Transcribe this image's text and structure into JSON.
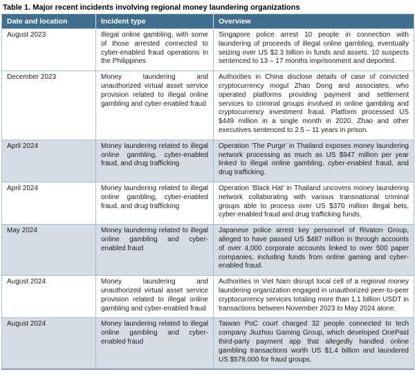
{
  "page": {
    "title": "Table 1. Major recent incidents involving regional money laundering organizations"
  },
  "table": {
    "headers": [
      "Date and location",
      "Incident type",
      "Overview"
    ],
    "rows": [
      {
        "date": "August 2023",
        "incident_type": "Illegal online gambling, with some of those arrested connected to cyber-enabled fraud operations in the Philippines",
        "overview": "Singapore police arrest 10 people in connection with laundering of proceeds of illegal online gambling, eventually seizing over US $2.3 billion in funds and assets. 10 suspects sentenced to 13 – 17 months imprisonment and deported."
      },
      {
        "date": "December 2023",
        "incident_type": "Money laundering and unauthorized virtual asset service provision related to illegal online gambling and cyber-enabled fraud",
        "overview": "Authorities in China disclose details of case of convicted cryptocurrency mogul Zhao Dong and associates, who operated platforms providing payment and settlement services to criminal groups involved in online gambling and cryptocurrency investment fraud. Platform processed US $449 million in a single month in 2020. Zhao and other executives sentenced to 2.5 – 11 years in prison."
      },
      {
        "date": "April 2024",
        "incident_type": "Money laundering related to illegal online gambling, cyber-enabled fraud, and drug trafficking",
        "overview": "Operation ‘The Purge’ in Thailand exposes money laundering network processing as much as US $947 million per year linked to illegal online gambling, cyber-enabled fraud, and drug trafficking."
      },
      {
        "date": "April 2024",
        "incident_type": "Money laundering related to illegal online gambling, cyber-enabled fraud, and drug trafficking",
        "overview": "Operation ‘Black Hat’ in Thailand uncovers money laundering network collaborating with various transnational criminal groups able to process over US $370 million illegal bets, cyber-enabled fraud and drug trafficking funds."
      },
      {
        "date": "May 2024",
        "incident_type": "Money laundering related to illegal online gambling and cyber-enabled fraud",
        "overview": "Japanese police arrest key personnel of Rivaton Group, alleged to have passed US $487 million in through accounts of over 4,000 corporate accounts linked to over 500 paper companies, including funds from online gaming and cyber-enabled fraud."
      },
      {
        "date": "August 2024",
        "incident_type": "Money laundering and unauthorized virtual asset service provision related to illegal online gambling and cyber-enabled fraud",
        "overview": "Authorities in Viet Nam disrupt local cell of a regional money laundering organization engaged in unauthorized peer-to-peer cryptocurrency services totaling more than 1.1 billion USDT in transactions between November 2023 to May 2024 alone."
      },
      {
        "date": "August 2024",
        "incident_type": "Money laundering related to illegal online gambling and cyber-enabled fraud",
        "overview": "Taiwan PoC court charged 32 people connected to tech company Jiuzhou Gaming Group, which developed OnePaid third-party payment app that allegedly handled online gambling transactions worth US $1.4 billion and laundered US $578,000 for fraud groups."
      }
    ]
  },
  "colors": {
    "header_bg": "#3f6e8e",
    "header_text": "#ffffff",
    "row_shaded_bg": "#d5dce4",
    "cell_border": "#a7bcd1",
    "outer_bottom_border": "#7f9fb8",
    "body_text": "#1b1b1b"
  }
}
